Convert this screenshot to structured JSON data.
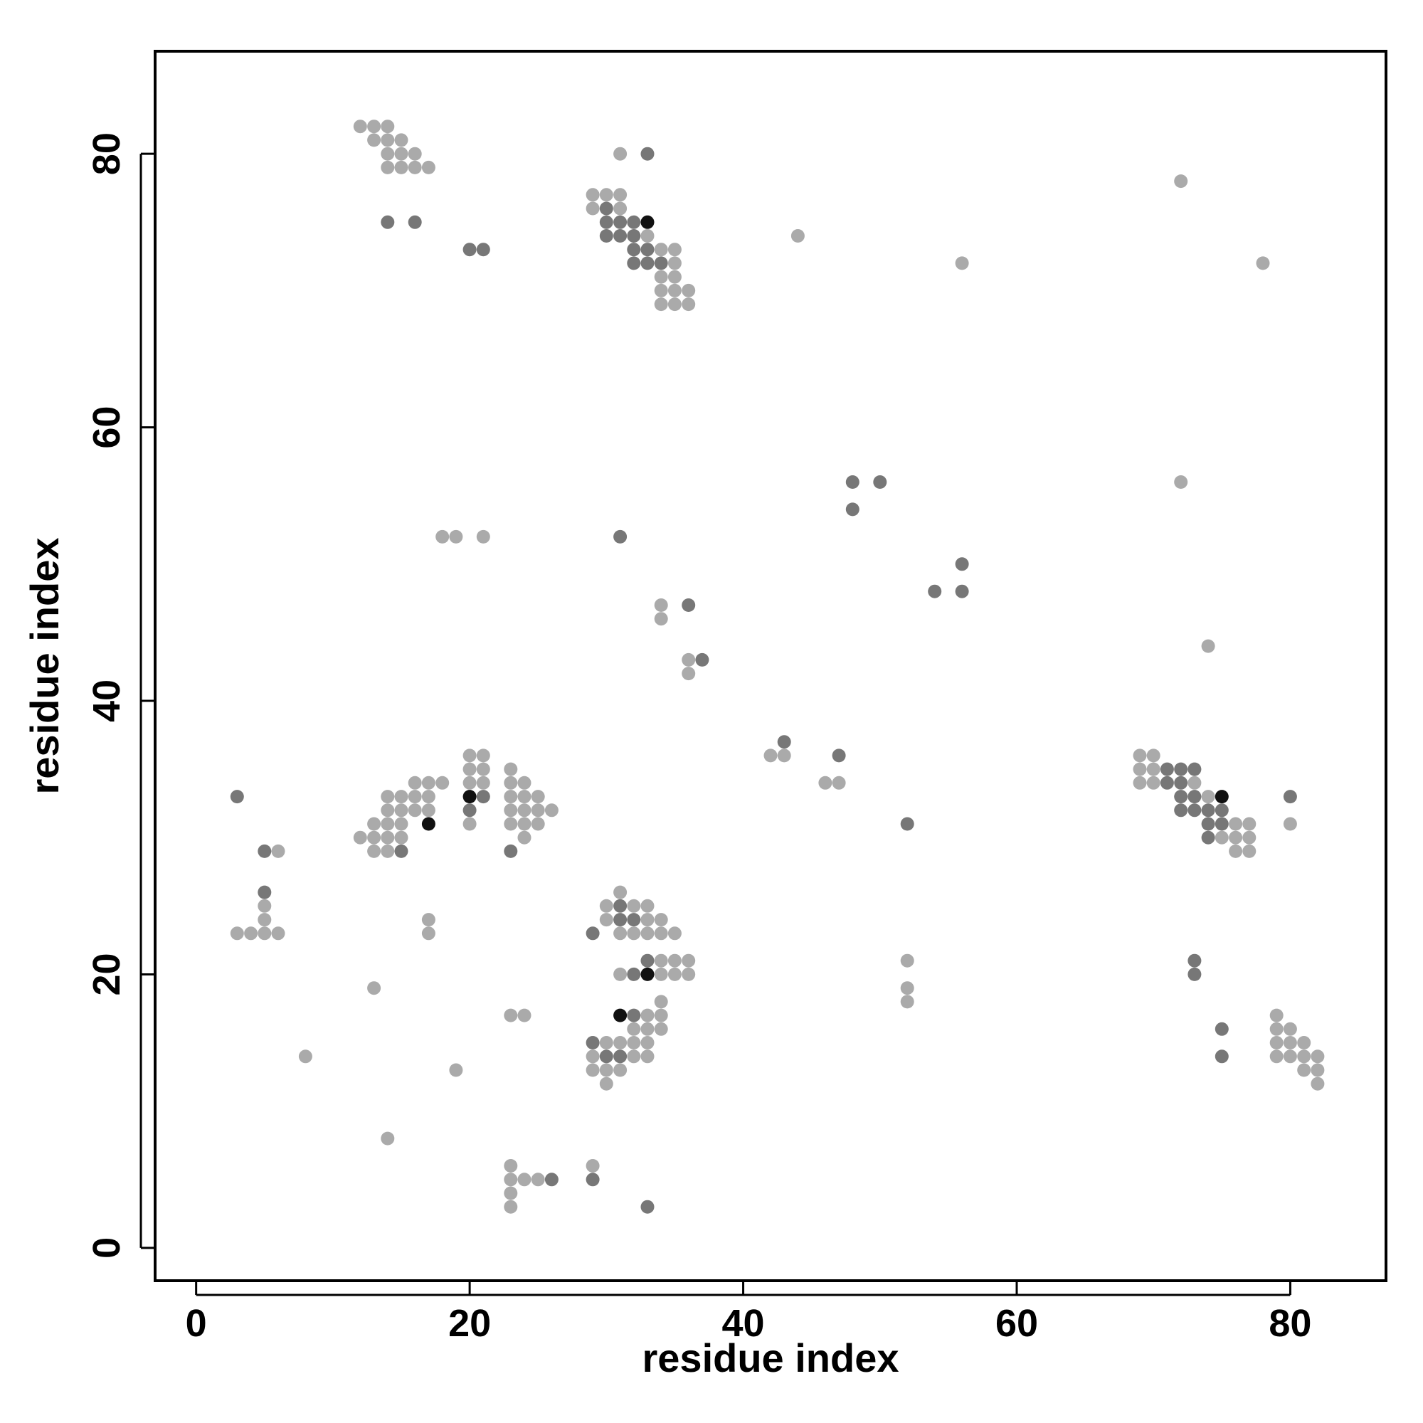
{
  "chart_data": {
    "type": "scatter",
    "title": "",
    "xlabel": "residue index",
    "ylabel": "residue index",
    "xlim": [
      -3,
      87
    ],
    "ylim": [
      -2.4,
      87.5
    ],
    "xticks": [
      0,
      20,
      40,
      60,
      80
    ],
    "yticks": [
      0,
      20,
      40,
      60,
      80
    ],
    "grid": false,
    "legend": "none",
    "colors": {
      "level1": "#aaaaaa",
      "level2": "#777777",
      "level3": "#111111"
    },
    "point_fields": [
      "x",
      "y",
      "shade_level"
    ],
    "points": [
      [
        12,
        82,
        1
      ],
      [
        13,
        82,
        1
      ],
      [
        14,
        82,
        1
      ],
      [
        13,
        81,
        1
      ],
      [
        14,
        81,
        1
      ],
      [
        15,
        81,
        1
      ],
      [
        14,
        80,
        1
      ],
      [
        15,
        80,
        1
      ],
      [
        16,
        80,
        1
      ],
      [
        14,
        79,
        1
      ],
      [
        15,
        79,
        1
      ],
      [
        16,
        79,
        1
      ],
      [
        17,
        79,
        1
      ],
      [
        14,
        75,
        2
      ],
      [
        16,
        75,
        2
      ],
      [
        31,
        80,
        1
      ],
      [
        33,
        80,
        2
      ],
      [
        29,
        77,
        1
      ],
      [
        30,
        77,
        1
      ],
      [
        31,
        77,
        1
      ],
      [
        29,
        76,
        1
      ],
      [
        30,
        76,
        2
      ],
      [
        31,
        76,
        1
      ],
      [
        30,
        75,
        2
      ],
      [
        31,
        75,
        2
      ],
      [
        32,
        75,
        2
      ],
      [
        33,
        75,
        3
      ],
      [
        30,
        74,
        2
      ],
      [
        31,
        74,
        2
      ],
      [
        32,
        74,
        2
      ],
      [
        33,
        74,
        1
      ],
      [
        32,
        73,
        2
      ],
      [
        33,
        73,
        2
      ],
      [
        34,
        73,
        1
      ],
      [
        35,
        73,
        1
      ],
      [
        32,
        72,
        2
      ],
      [
        33,
        72,
        2
      ],
      [
        34,
        72,
        2
      ],
      [
        35,
        72,
        1
      ],
      [
        34,
        71,
        1
      ],
      [
        35,
        71,
        1
      ],
      [
        34,
        70,
        1
      ],
      [
        35,
        70,
        1
      ],
      [
        36,
        70,
        1
      ],
      [
        34,
        69,
        1
      ],
      [
        35,
        69,
        1
      ],
      [
        36,
        69,
        1
      ],
      [
        20,
        73,
        2
      ],
      [
        21,
        73,
        2
      ],
      [
        44,
        74,
        1
      ],
      [
        56,
        72,
        1
      ],
      [
        72,
        78,
        1
      ],
      [
        78,
        72,
        1
      ],
      [
        48,
        56,
        2
      ],
      [
        50,
        56,
        2
      ],
      [
        48,
        54,
        2
      ],
      [
        72,
        56,
        1
      ],
      [
        18,
        52,
        1
      ],
      [
        19,
        52,
        1
      ],
      [
        21,
        52,
        1
      ],
      [
        31,
        52,
        2
      ],
      [
        56,
        50,
        2
      ],
      [
        54,
        48,
        2
      ],
      [
        56,
        48,
        2
      ],
      [
        34,
        47,
        1
      ],
      [
        36,
        47,
        2
      ],
      [
        34,
        46,
        1
      ],
      [
        74,
        44,
        1
      ],
      [
        36,
        43,
        1
      ],
      [
        37,
        43,
        2
      ],
      [
        36,
        42,
        1
      ],
      [
        43,
        37,
        2
      ],
      [
        42,
        36,
        1
      ],
      [
        43,
        36,
        1
      ],
      [
        47,
        36,
        2
      ],
      [
        46,
        34,
        1
      ],
      [
        47,
        34,
        1
      ],
      [
        20,
        36,
        1
      ],
      [
        21,
        36,
        1
      ],
      [
        20,
        35,
        1
      ],
      [
        21,
        35,
        1
      ],
      [
        20,
        34,
        1
      ],
      [
        21,
        34,
        1
      ],
      [
        20,
        33,
        3
      ],
      [
        21,
        33,
        2
      ],
      [
        20,
        32,
        2
      ],
      [
        20,
        31,
        1
      ],
      [
        23,
        35,
        1
      ],
      [
        23,
        34,
        1
      ],
      [
        24,
        34,
        1
      ],
      [
        23,
        33,
        1
      ],
      [
        24,
        33,
        1
      ],
      [
        25,
        33,
        1
      ],
      [
        23,
        32,
        1
      ],
      [
        24,
        32,
        1
      ],
      [
        25,
        32,
        1
      ],
      [
        26,
        32,
        1
      ],
      [
        23,
        31,
        1
      ],
      [
        24,
        31,
        1
      ],
      [
        25,
        31,
        1
      ],
      [
        24,
        30,
        1
      ],
      [
        23,
        29,
        2
      ],
      [
        16,
        34,
        1
      ],
      [
        17,
        34,
        1
      ],
      [
        18,
        34,
        1
      ],
      [
        14,
        33,
        1
      ],
      [
        15,
        33,
        1
      ],
      [
        16,
        33,
        1
      ],
      [
        17,
        33,
        1
      ],
      [
        14,
        32,
        1
      ],
      [
        15,
        32,
        1
      ],
      [
        16,
        32,
        1
      ],
      [
        17,
        32,
        1
      ],
      [
        13,
        31,
        1
      ],
      [
        14,
        31,
        1
      ],
      [
        15,
        31,
        1
      ],
      [
        17,
        31,
        3
      ],
      [
        12,
        30,
        1
      ],
      [
        13,
        30,
        1
      ],
      [
        14,
        30,
        1
      ],
      [
        15,
        30,
        1
      ],
      [
        13,
        29,
        1
      ],
      [
        14,
        29,
        1
      ],
      [
        15,
        29,
        2
      ],
      [
        3,
        33,
        2
      ],
      [
        5,
        29,
        2
      ],
      [
        6,
        29,
        1
      ],
      [
        5,
        26,
        2
      ],
      [
        5,
        25,
        1
      ],
      [
        5,
        24,
        1
      ],
      [
        3,
        23,
        1
      ],
      [
        4,
        23,
        1
      ],
      [
        5,
        23,
        1
      ],
      [
        6,
        23,
        1
      ],
      [
        17,
        24,
        1
      ],
      [
        17,
        23,
        1
      ],
      [
        13,
        19,
        1
      ],
      [
        8,
        14,
        1
      ],
      [
        19,
        13,
        1
      ],
      [
        14,
        8,
        1
      ],
      [
        31,
        26,
        1
      ],
      [
        30,
        25,
        1
      ],
      [
        31,
        25,
        2
      ],
      [
        32,
        25,
        1
      ],
      [
        33,
        25,
        1
      ],
      [
        30,
        24,
        1
      ],
      [
        31,
        24,
        2
      ],
      [
        32,
        24,
        2
      ],
      [
        33,
        24,
        1
      ],
      [
        34,
        24,
        1
      ],
      [
        29,
        23,
        2
      ],
      [
        31,
        23,
        1
      ],
      [
        32,
        23,
        1
      ],
      [
        33,
        23,
        1
      ],
      [
        34,
        23,
        1
      ],
      [
        35,
        23,
        1
      ],
      [
        33,
        21,
        2
      ],
      [
        34,
        21,
        1
      ],
      [
        35,
        21,
        1
      ],
      [
        36,
        21,
        1
      ],
      [
        31,
        20,
        1
      ],
      [
        32,
        20,
        2
      ],
      [
        33,
        20,
        3
      ],
      [
        34,
        20,
        1
      ],
      [
        35,
        20,
        1
      ],
      [
        36,
        20,
        1
      ],
      [
        34,
        18,
        1
      ],
      [
        31,
        17,
        3
      ],
      [
        32,
        17,
        2
      ],
      [
        33,
        17,
        1
      ],
      [
        34,
        17,
        1
      ],
      [
        32,
        16,
        1
      ],
      [
        33,
        16,
        1
      ],
      [
        34,
        16,
        1
      ],
      [
        29,
        15,
        2
      ],
      [
        30,
        15,
        1
      ],
      [
        31,
        15,
        1
      ],
      [
        32,
        15,
        1
      ],
      [
        33,
        15,
        1
      ],
      [
        29,
        14,
        1
      ],
      [
        30,
        14,
        2
      ],
      [
        31,
        14,
        2
      ],
      [
        32,
        14,
        1
      ],
      [
        33,
        14,
        1
      ],
      [
        29,
        13,
        1
      ],
      [
        30,
        13,
        1
      ],
      [
        31,
        13,
        1
      ],
      [
        30,
        12,
        1
      ],
      [
        23,
        17,
        1
      ],
      [
        24,
        17,
        1
      ],
      [
        23,
        6,
        1
      ],
      [
        29,
        6,
        1
      ],
      [
        23,
        5,
        1
      ],
      [
        24,
        5,
        1
      ],
      [
        25,
        5,
        1
      ],
      [
        26,
        5,
        2
      ],
      [
        29,
        5,
        2
      ],
      [
        23,
        4,
        1
      ],
      [
        23,
        3,
        1
      ],
      [
        33,
        3,
        2
      ],
      [
        52,
        31,
        2
      ],
      [
        52,
        21,
        1
      ],
      [
        52,
        19,
        1
      ],
      [
        52,
        18,
        1
      ],
      [
        69,
        36,
        1
      ],
      [
        70,
        36,
        1
      ],
      [
        69,
        35,
        1
      ],
      [
        70,
        35,
        1
      ],
      [
        71,
        35,
        2
      ],
      [
        72,
        35,
        2
      ],
      [
        73,
        35,
        2
      ],
      [
        69,
        34,
        1
      ],
      [
        70,
        34,
        1
      ],
      [
        71,
        34,
        2
      ],
      [
        72,
        34,
        2
      ],
      [
        73,
        34,
        1
      ],
      [
        72,
        33,
        2
      ],
      [
        73,
        33,
        2
      ],
      [
        74,
        33,
        1
      ],
      [
        75,
        33,
        3
      ],
      [
        72,
        32,
        2
      ],
      [
        73,
        32,
        2
      ],
      [
        74,
        32,
        2
      ],
      [
        75,
        32,
        2
      ],
      [
        74,
        31,
        2
      ],
      [
        75,
        31,
        2
      ],
      [
        76,
        31,
        1
      ],
      [
        77,
        31,
        1
      ],
      [
        74,
        30,
        2
      ],
      [
        75,
        30,
        1
      ],
      [
        76,
        30,
        1
      ],
      [
        77,
        30,
        1
      ],
      [
        76,
        29,
        1
      ],
      [
        77,
        29,
        1
      ],
      [
        80,
        33,
        2
      ],
      [
        80,
        31,
        1
      ],
      [
        73,
        21,
        2
      ],
      [
        73,
        20,
        2
      ],
      [
        75,
        16,
        2
      ],
      [
        75,
        14,
        2
      ],
      [
        79,
        17,
        1
      ],
      [
        79,
        16,
        1
      ],
      [
        80,
        16,
        1
      ],
      [
        79,
        15,
        1
      ],
      [
        80,
        15,
        1
      ],
      [
        81,
        15,
        1
      ],
      [
        79,
        14,
        1
      ],
      [
        80,
        14,
        1
      ],
      [
        81,
        14,
        1
      ],
      [
        82,
        14,
        1
      ],
      [
        81,
        13,
        1
      ],
      [
        82,
        13,
        1
      ],
      [
        82,
        12,
        1
      ]
    ]
  }
}
